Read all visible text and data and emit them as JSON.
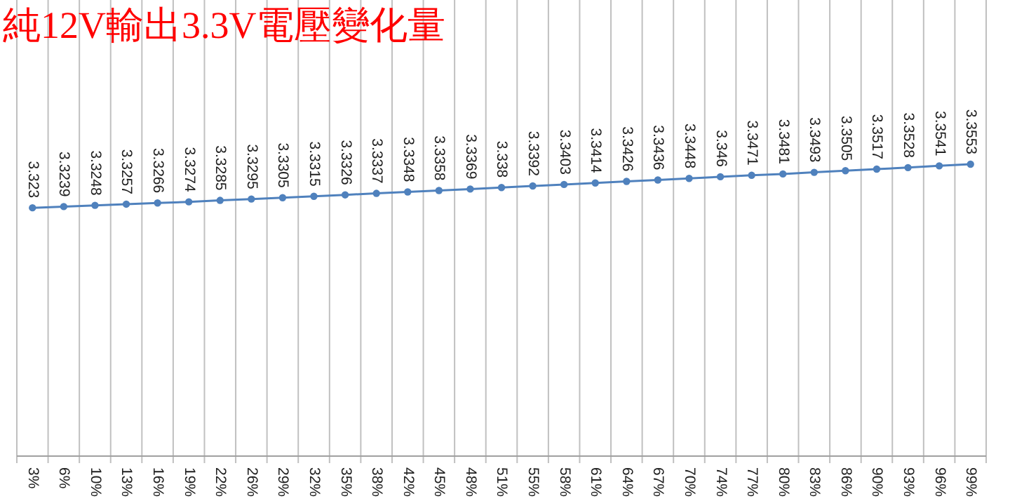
{
  "chart_data": {
    "type": "line",
    "title": "純12V輸出3.3V電壓變化量",
    "categories": [
      "3%",
      "6%",
      "10%",
      "13%",
      "16%",
      "19%",
      "22%",
      "26%",
      "29%",
      "32%",
      "35%",
      "38%",
      "42%",
      "45%",
      "48%",
      "51%",
      "55%",
      "58%",
      "61%",
      "64%",
      "67%",
      "70%",
      "74%",
      "77%",
      "80%",
      "83%",
      "86%",
      "90%",
      "93%",
      "96%",
      "99%"
    ],
    "values": [
      3.323,
      3.3239,
      3.3248,
      3.3257,
      3.3266,
      3.3274,
      3.3285,
      3.3295,
      3.3305,
      3.3315,
      3.3326,
      3.3337,
      3.3348,
      3.3358,
      3.3369,
      3.338,
      3.3392,
      3.3403,
      3.3414,
      3.3426,
      3.3436,
      3.3448,
      3.346,
      3.3471,
      3.3481,
      3.3493,
      3.3505,
      3.3517,
      3.3528,
      3.3541,
      3.3553
    ],
    "color": "#4f81bd",
    "data_labels": true,
    "grid": "x",
    "marker": "circle"
  }
}
